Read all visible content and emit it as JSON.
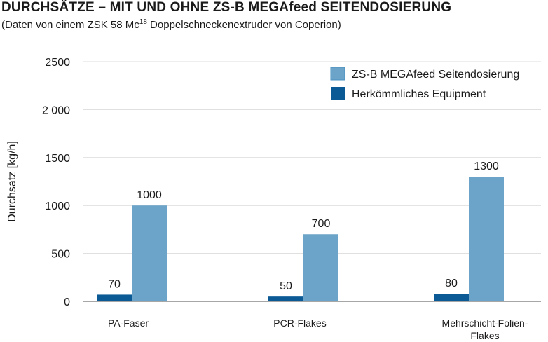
{
  "header": {
    "title": "DURCHSÄTZE – MIT UND OHNE ZS-B MEGAfeed SEITENDOSIERUNG",
    "subtitle_pre": "(Daten von einem ZSK 58 Mc",
    "subtitle_sup": "18",
    "subtitle_post": " Doppelschneckenextruder von Coperion)"
  },
  "chart_data": {
    "type": "bar",
    "ylabel": "Durchsatz [kg/h]",
    "ylim": [
      0,
      2500
    ],
    "yticks": [
      0,
      500,
      1000,
      1500,
      2000,
      2500
    ],
    "ytick_labels": [
      "0",
      "500",
      "1000",
      "1500",
      "2 000",
      "2500"
    ],
    "grid": true,
    "legend_position": "top-right",
    "categories": [
      [
        "PA-Faser"
      ],
      [
        "PCR-Flakes"
      ],
      [
        "Mehrschicht-Folien-",
        "Flakes"
      ]
    ],
    "series": [
      {
        "name": "Herkömmliches Equipment",
        "color": "#0b5a96",
        "values": [
          70,
          50,
          80
        ],
        "labels": [
          "70",
          "50",
          "80"
        ]
      },
      {
        "name": "ZS-B MEGAfeed Seitendosierung",
        "color": "#6ba4c8",
        "values": [
          1000,
          700,
          1300
        ],
        "labels": [
          "1000",
          "700",
          "1300"
        ]
      }
    ],
    "legend_order": [
      1,
      0
    ]
  }
}
